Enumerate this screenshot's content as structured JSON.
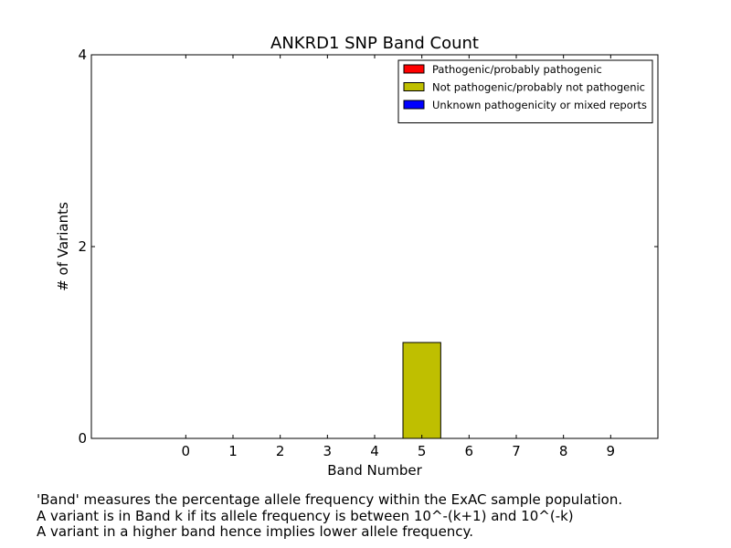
{
  "chart_data": {
    "type": "bar",
    "title": "ANKRD1 SNP Band Count",
    "xlabel": "Band Number",
    "ylabel": "# of Variants",
    "categories": [
      "0",
      "1",
      "2",
      "3",
      "4",
      "5",
      "6",
      "7",
      "8",
      "9"
    ],
    "x_range": [
      -2,
      10
    ],
    "ylim": [
      0,
      4
    ],
    "yticks": [
      "0",
      "2",
      "4"
    ],
    "stacked": true,
    "grid": false,
    "legend_position": "top-right",
    "series": [
      {
        "name": "Pathogenic/probably pathogenic",
        "color": "#ff0000",
        "values": [
          0,
          0,
          0,
          0,
          0,
          0,
          0,
          0,
          0,
          0
        ]
      },
      {
        "name": "Not pathogenic/probably not pathogenic",
        "color": "#bfbf00",
        "values": [
          0,
          0,
          0,
          0,
          0,
          1,
          0,
          0,
          0,
          0
        ]
      },
      {
        "name": "Unknown pathogenicity or mixed reports",
        "color": "#0000ff",
        "values": [
          0,
          0,
          0,
          0,
          0,
          0,
          0,
          0,
          0,
          0
        ]
      }
    ]
  },
  "caption": {
    "line1": "'Band' measures the percentage allele frequency within the ExAC sample population.",
    "line2": "A variant is in Band k if its allele frequency is between 10^-(k+1) and 10^(-k)",
    "line3": "A variant in a higher band hence implies lower allele frequency."
  }
}
